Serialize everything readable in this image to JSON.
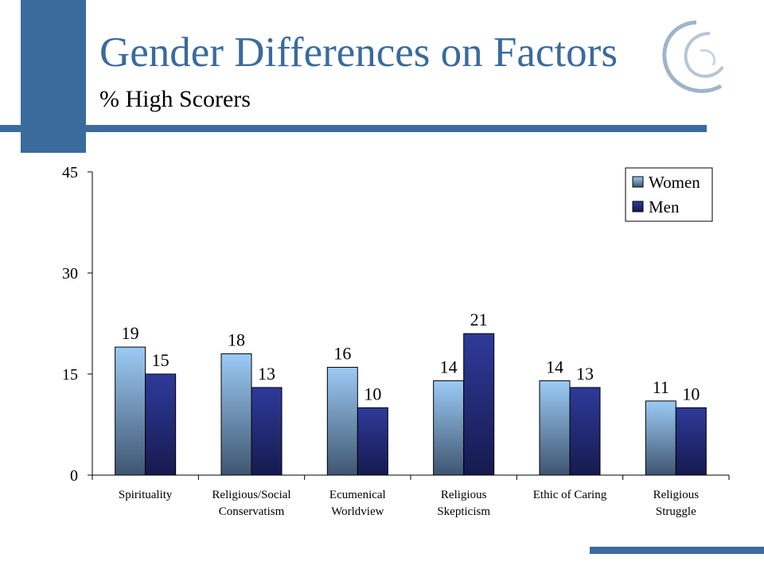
{
  "slide": {
    "title": "Gender Differences on Factors",
    "subtitle": "% High Scorers"
  },
  "colors": {
    "accent": "#3a6b9c",
    "women_top": "#9ccbf5",
    "women_bottom": "#3f5570",
    "men_top": "#2e3a9a",
    "men_bottom": "#161a4e"
  },
  "chart_data": {
    "type": "bar",
    "categories": [
      [
        "Spirituality"
      ],
      [
        "Religious/Social",
        "Conservatism"
      ],
      [
        "Ecumenical",
        "Worldview"
      ],
      [
        "Religious",
        "Skepticism"
      ],
      [
        "Ethic of Caring"
      ],
      [
        "Religious",
        "Struggle"
      ]
    ],
    "series": [
      {
        "name": "Women",
        "values": [
          19,
          18,
          16,
          14,
          14,
          11
        ]
      },
      {
        "name": "Men",
        "values": [
          15,
          13,
          10,
          21,
          13,
          10
        ]
      }
    ],
    "ylim": [
      0,
      45
    ],
    "yticks": [
      0,
      15,
      30,
      45
    ],
    "grid": false,
    "legend": "top-right"
  }
}
